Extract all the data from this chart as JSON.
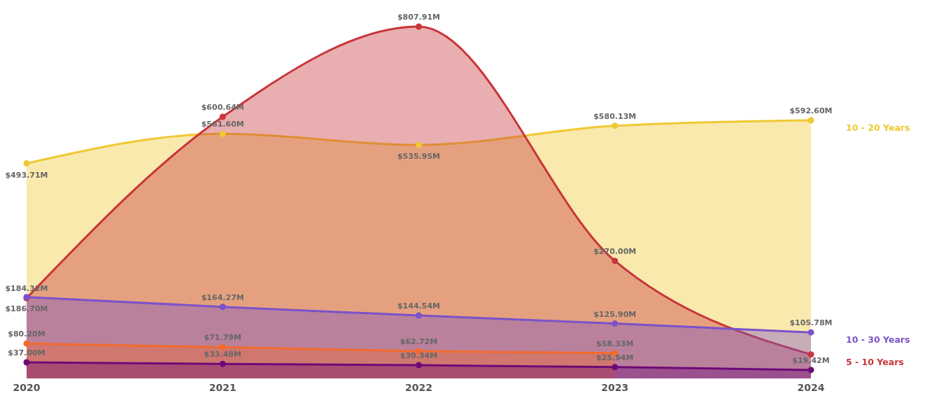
{
  "chart_data": {
    "type": "area",
    "categories": [
      "2020",
      "2021",
      "2022",
      "2023",
      "2024"
    ],
    "marker": "circle",
    "legend": false,
    "grid": false,
    "tick_labels": "x",
    "series": [
      {
        "name": "10 - 20 Years",
        "color": "#f0c832",
        "values": [
          493.71,
          561.6,
          535.95,
          580.13,
          592.6
        ],
        "value_labels": [
          "$493.71M",
          "$561.60M",
          "$535.95M",
          "$580.13M",
          "$592.60M"
        ]
      },
      {
        "name": "5 - 10 Years",
        "color": "#c8353a",
        "values": [
          184.32,
          600.64,
          807.91,
          270.0,
          55
        ],
        "value_labels": [
          "$184.32M",
          "$600.64M",
          "$807.91M",
          "$270.00M",
          null
        ]
      },
      {
        "name": "10 - 30 Years",
        "color": "#7b52c9",
        "values": [
          186.7,
          164.27,
          144.54,
          125.9,
          105.78
        ],
        "value_labels": [
          "$186.70M",
          "$164.27M",
          "$144.54M",
          "$125.90M",
          "$105.78M"
        ]
      },
      {
        "color": "#f26b2e",
        "values": [
          80.2,
          71.79,
          62.72,
          58.33,
          null
        ],
        "value_labels": [
          "$80.20M",
          "$71.79M",
          "$62.72M",
          "$58.33M",
          null
        ]
      },
      {
        "color": "#6e0a78",
        "values": [
          37.0,
          33.48,
          30.34,
          25.94,
          19.42
        ],
        "value_labels": [
          "$37.00M",
          "$33.48M",
          "$30.34M",
          "$25.94M",
          "$19.42M"
        ]
      }
    ]
  }
}
